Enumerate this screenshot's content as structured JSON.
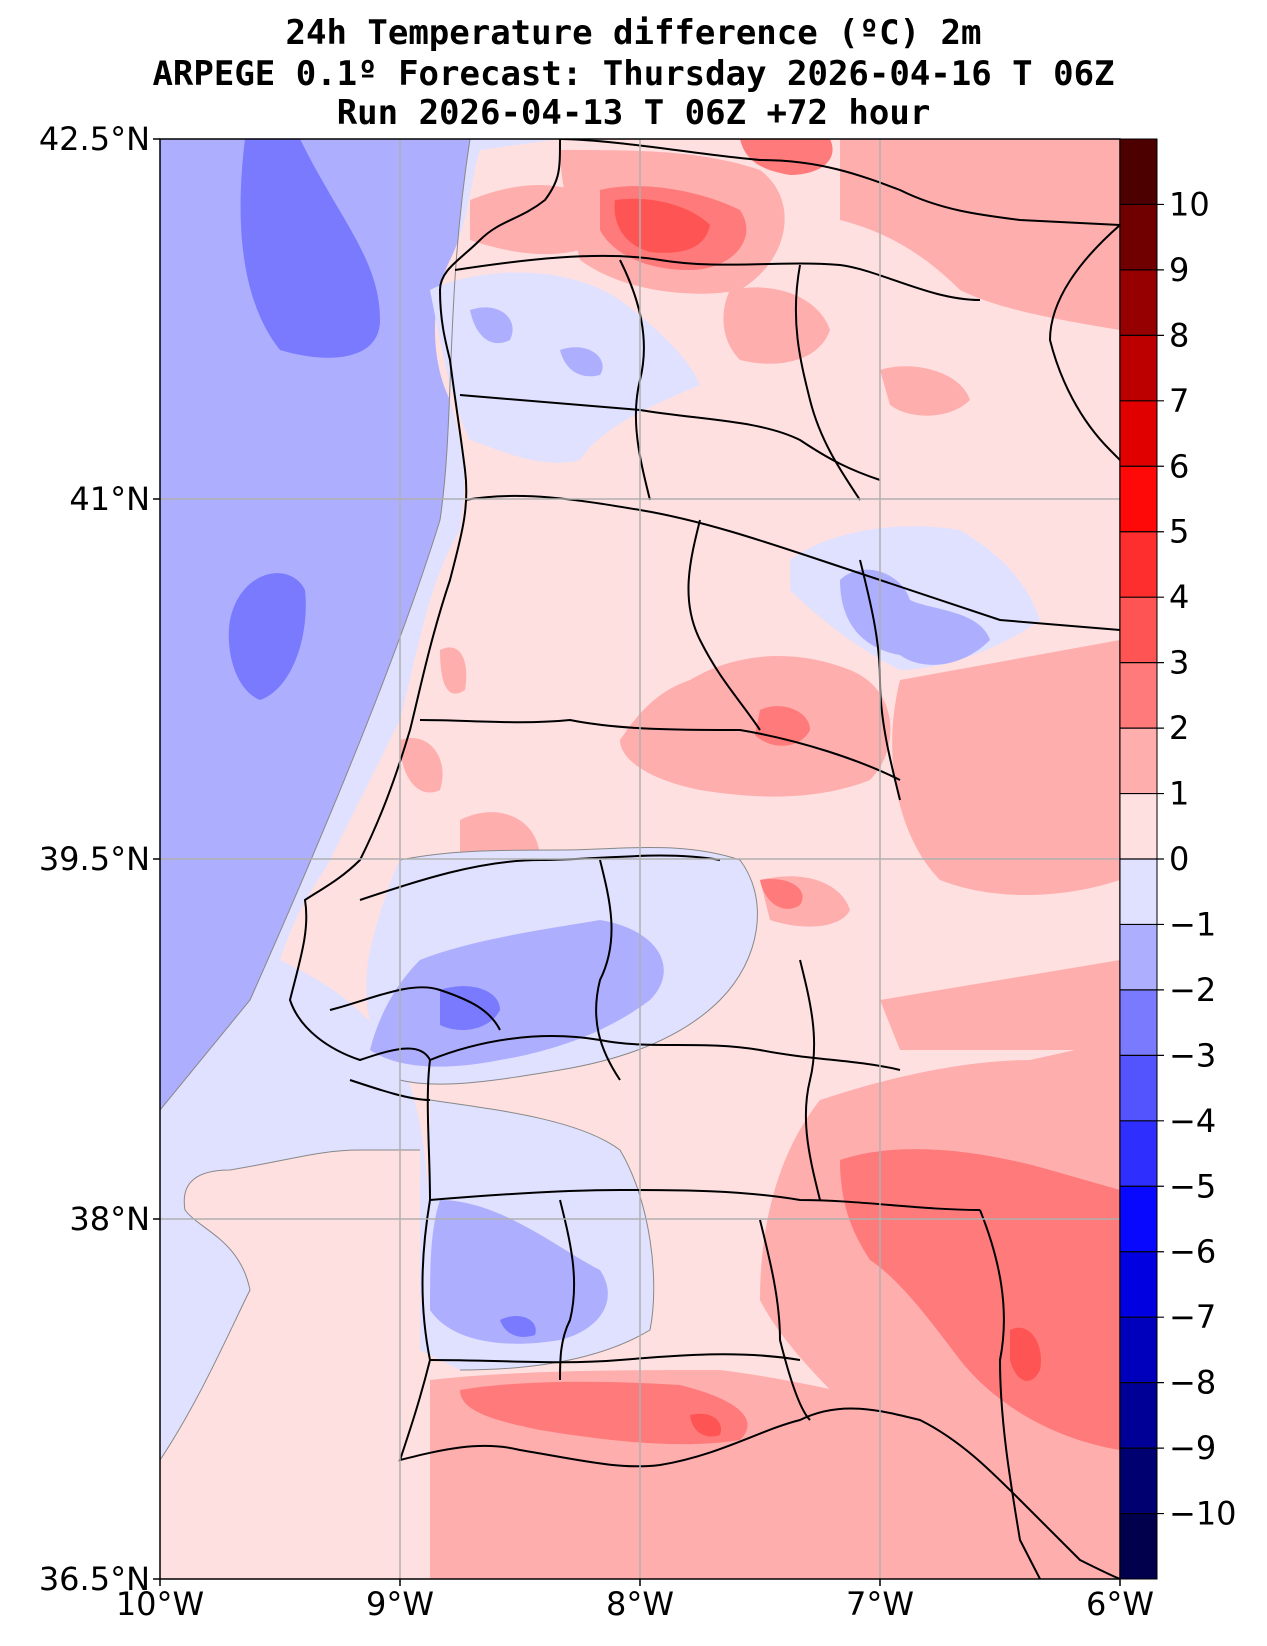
{
  "title": {
    "line1": "24h Temperature difference (ºC) 2m",
    "line2": "ARPEGE 0.1º Forecast: Thursday 2026-04-16 T 06Z",
    "line3": "Run 2026-04-13 T 06Z +72 hour"
  },
  "map": {
    "region": "Portugal",
    "lon_range": [
      -10,
      -6
    ],
    "lat_range": [
      36.5,
      42.5
    ],
    "x_ticks": [
      {
        "value": -10,
        "label": "10°W"
      },
      {
        "value": -9,
        "label": "9°W"
      },
      {
        "value": -8,
        "label": "8°W"
      },
      {
        "value": -7,
        "label": "7°W"
      },
      {
        "value": -6,
        "label": "6°W"
      }
    ],
    "y_ticks": [
      {
        "value": 42.5,
        "label": "42.5°N"
      },
      {
        "value": 41,
        "label": "41°N"
      },
      {
        "value": 39.5,
        "label": "39.5°N"
      },
      {
        "value": 38,
        "label": "38°N"
      },
      {
        "value": 36.5,
        "label": "36.5°N"
      }
    ]
  },
  "colorbar": {
    "levels": [
      -11,
      -10,
      -9,
      -8,
      -7,
      -6,
      -5,
      -4,
      -3,
      -2,
      -1,
      0,
      1,
      2,
      3,
      4,
      5,
      6,
      7,
      8,
      9,
      10,
      11
    ],
    "colors": [
      "#00004c",
      "#000070",
      "#000096",
      "#0000bc",
      "#0000e1",
      "#0808ff",
      "#2e2eff",
      "#5454ff",
      "#7a7aff",
      "#aeaeff",
      "#e0e0ff",
      "#ffe0e0",
      "#ffaeae",
      "#ff7a7a",
      "#ff5454",
      "#ff2e2e",
      "#ff0808",
      "#e10000",
      "#bc0000",
      "#960000",
      "#700000",
      "#4c0000"
    ],
    "labels": [
      {
        "value": 10,
        "label": "10"
      },
      {
        "value": 9,
        "label": "9"
      },
      {
        "value": 8,
        "label": "8"
      },
      {
        "value": 7,
        "label": "7"
      },
      {
        "value": 6,
        "label": "6"
      },
      {
        "value": 5,
        "label": "5"
      },
      {
        "value": 4,
        "label": "4"
      },
      {
        "value": 3,
        "label": "3"
      },
      {
        "value": 2,
        "label": "2"
      },
      {
        "value": 1,
        "label": "1"
      },
      {
        "value": 0,
        "label": "0"
      },
      {
        "value": -1,
        "label": "−1"
      },
      {
        "value": -2,
        "label": "−2"
      },
      {
        "value": -3,
        "label": "−3"
      },
      {
        "value": -4,
        "label": "−4"
      },
      {
        "value": -5,
        "label": "−5"
      },
      {
        "value": -6,
        "label": "−6"
      },
      {
        "value": -7,
        "label": "−7"
      },
      {
        "value": -8,
        "label": "−8"
      },
      {
        "value": -9,
        "label": "−9"
      },
      {
        "value": -10,
        "label": "−10"
      }
    ]
  }
}
